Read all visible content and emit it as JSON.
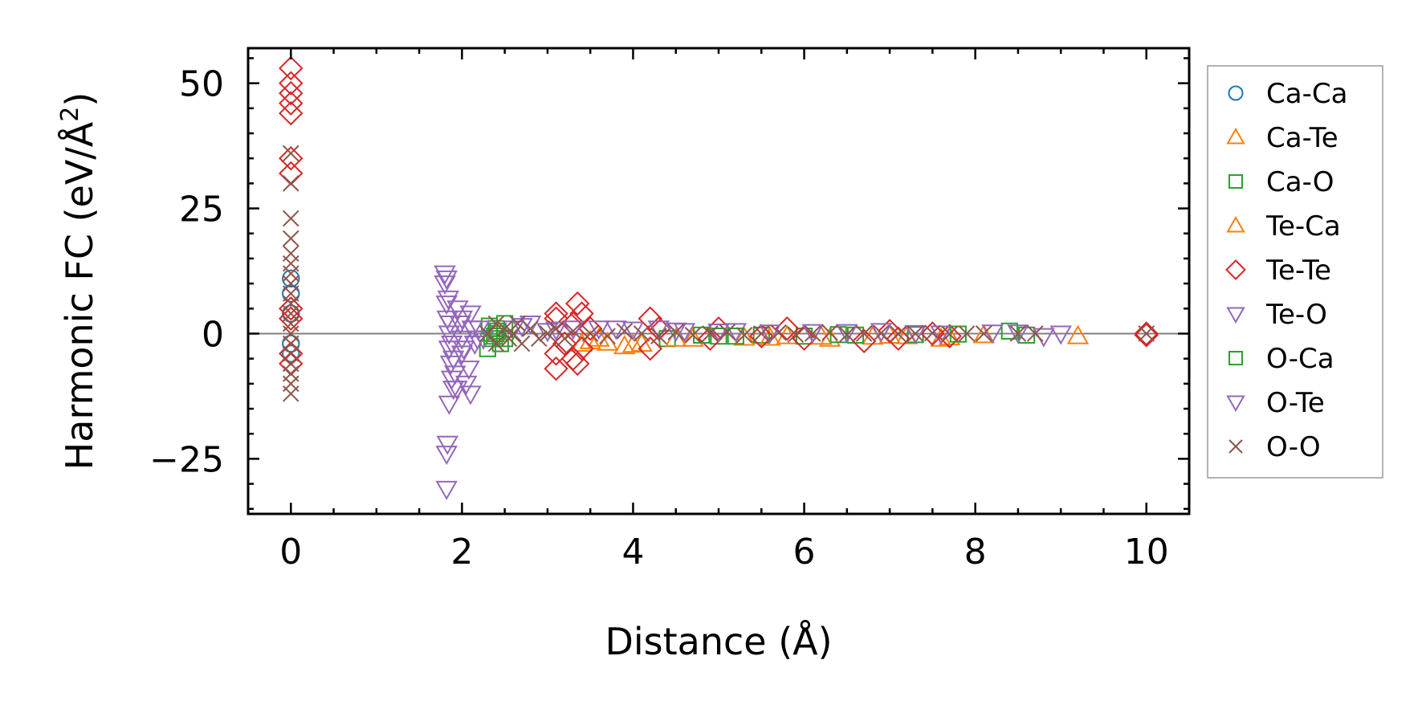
{
  "chart_data": {
    "type": "scatter",
    "xlabel": "Distance (Å)",
    "ylabel_main": "Harmonic FC (eV/Å",
    "ylabel_sup": "2",
    "ylabel_close": ")",
    "xlim": [
      -0.5,
      10.5
    ],
    "ylim": [
      -36,
      57
    ],
    "xticks": [
      0,
      2,
      4,
      6,
      8,
      10
    ],
    "xtick_labels": [
      "0",
      "2",
      "4",
      "6",
      "8",
      "10"
    ],
    "yticks": [
      -25,
      0,
      25,
      50
    ],
    "ytick_labels": [
      "−25",
      "0",
      "25",
      "50"
    ],
    "legend_position": "outside-right",
    "reference_line_y": 0,
    "series": [
      {
        "name": "Ca-Ca",
        "marker": "circle",
        "color": "#1f77b4",
        "points": [
          [
            0,
            4
          ],
          [
            0,
            -2
          ],
          [
            0,
            8
          ],
          [
            0,
            -4
          ],
          [
            0,
            11
          ]
        ]
      },
      {
        "name": "Ca-Te",
        "marker": "triangle-up",
        "color": "#ff7f0e",
        "points": [
          [
            3.4,
            -2
          ],
          [
            3.6,
            -1
          ],
          [
            3.9,
            -2.5
          ],
          [
            4.1,
            -2
          ],
          [
            4.7,
            -1
          ],
          [
            5.3,
            -0.8
          ],
          [
            5.8,
            -0.5
          ],
          [
            6.3,
            -1
          ],
          [
            6.8,
            -0.6
          ],
          [
            7.2,
            -0.5
          ],
          [
            7.6,
            -1
          ],
          [
            8.1,
            -0.3
          ],
          [
            9.2,
            -0.5
          ]
        ]
      },
      {
        "name": "Ca-O",
        "marker": "square",
        "color": "#2ca02c",
        "points": [
          [
            2.3,
            -3
          ],
          [
            2.35,
            -1
          ],
          [
            2.4,
            0
          ],
          [
            2.4,
            1
          ],
          [
            2.45,
            -2
          ],
          [
            2.5,
            2
          ],
          [
            4.4,
            -1
          ],
          [
            5.0,
            -0.5
          ],
          [
            5.5,
            -0.3
          ],
          [
            6.0,
            -0.5
          ],
          [
            6.6,
            -0.3
          ],
          [
            7.3,
            -0.2
          ],
          [
            8.4,
            0.5
          ],
          [
            8.6,
            -0.3
          ]
        ]
      },
      {
        "name": "Te-Ca",
        "marker": "triangle-up",
        "color": "#ff7f0e",
        "points": [
          [
            3.5,
            -1.5
          ],
          [
            3.7,
            -1.8
          ],
          [
            4.0,
            -2.2
          ],
          [
            4.5,
            -1
          ],
          [
            5.6,
            -0.8
          ],
          [
            6.2,
            -0.6
          ],
          [
            7.0,
            -0.4
          ],
          [
            7.7,
            -0.7
          ]
        ]
      },
      {
        "name": "Te-Te",
        "marker": "diamond",
        "color": "#d62728",
        "points": [
          [
            0,
            53
          ],
          [
            0,
            50
          ],
          [
            0,
            48
          ],
          [
            0,
            46
          ],
          [
            0,
            44
          ],
          [
            0,
            35
          ],
          [
            0,
            32
          ],
          [
            0,
            5
          ],
          [
            0,
            3
          ],
          [
            0,
            -4
          ],
          [
            0,
            -6
          ],
          [
            3.1,
            4
          ],
          [
            3.1,
            3
          ],
          [
            3.1,
            -4
          ],
          [
            3.1,
            -7
          ],
          [
            3.2,
            -2
          ],
          [
            3.3,
            2
          ],
          [
            3.3,
            -5
          ],
          [
            3.35,
            6
          ],
          [
            3.35,
            -6
          ],
          [
            3.4,
            4
          ],
          [
            3.4,
            -3
          ],
          [
            3.5,
            1
          ],
          [
            4.2,
            3
          ],
          [
            4.2,
            -3
          ],
          [
            4.3,
            1
          ],
          [
            4.9,
            -1
          ],
          [
            5.0,
            1
          ],
          [
            5.5,
            -0.5
          ],
          [
            5.8,
            1
          ],
          [
            6.0,
            -1
          ],
          [
            6.7,
            -1.5
          ],
          [
            7.0,
            0.5
          ],
          [
            7.1,
            -1
          ],
          [
            7.5,
            0
          ],
          [
            7.7,
            -0.5
          ],
          [
            10,
            0
          ],
          [
            10,
            -0.3
          ]
        ]
      },
      {
        "name": "Te-O",
        "marker": "triangle-down",
        "color": "#9467bd",
        "points": [
          [
            1.8,
            12
          ],
          [
            1.8,
            10
          ],
          [
            1.82,
            6
          ],
          [
            1.83,
            3
          ],
          [
            1.85,
            0
          ],
          [
            1.85,
            -3
          ],
          [
            1.87,
            -6
          ],
          [
            1.88,
            -9
          ],
          [
            1.9,
            -11
          ],
          [
            1.85,
            -14
          ],
          [
            1.83,
            -22
          ],
          [
            1.82,
            -24
          ],
          [
            1.82,
            -31
          ],
          [
            1.95,
            5
          ],
          [
            1.98,
            2
          ],
          [
            2.0,
            -1
          ],
          [
            2.0,
            -4
          ],
          [
            2.05,
            -10
          ],
          [
            2.1,
            -12
          ],
          [
            2.1,
            4
          ],
          [
            2.15,
            -2
          ],
          [
            2.2,
            1
          ],
          [
            2.25,
            -1
          ],
          [
            2.6,
            1
          ],
          [
            2.8,
            2
          ],
          [
            3.0,
            0.5
          ],
          [
            3.3,
            1
          ],
          [
            3.8,
            1
          ],
          [
            4.3,
            1
          ],
          [
            4.6,
            0.5
          ],
          [
            5.2,
            0.5
          ],
          [
            6.1,
            0.3
          ],
          [
            6.9,
            0.5
          ],
          [
            7.6,
            0
          ],
          [
            8.8,
            -0.5
          ],
          [
            9.0,
            0
          ],
          [
            8.5,
            0.2
          ]
        ]
      },
      {
        "name": "O-Ca",
        "marker": "square",
        "color": "#2ca02c",
        "points": [
          [
            2.32,
            1.5
          ],
          [
            2.38,
            -0.5
          ],
          [
            2.42,
            0.5
          ],
          [
            2.5,
            -1
          ],
          [
            4.8,
            -0.3
          ],
          [
            5.2,
            -0.5
          ],
          [
            6.4,
            -0.2
          ],
          [
            7.8,
            -0.1
          ]
        ]
      },
      {
        "name": "O-Te",
        "marker": "triangle-down",
        "color": "#9467bd",
        "points": [
          [
            1.82,
            11
          ],
          [
            1.84,
            7
          ],
          [
            1.86,
            2
          ],
          [
            1.88,
            -2
          ],
          [
            1.9,
            -5
          ],
          [
            1.92,
            -8
          ],
          [
            1.94,
            -11
          ],
          [
            2.0,
            3
          ],
          [
            2.02,
            -3
          ],
          [
            2.08,
            -7
          ],
          [
            2.12,
            1
          ],
          [
            2.18,
            -1
          ],
          [
            2.7,
            1.5
          ],
          [
            3.1,
            0.8
          ],
          [
            3.6,
            1
          ],
          [
            4.0,
            0.8
          ],
          [
            4.5,
            0.6
          ],
          [
            5.0,
            0.4
          ],
          [
            5.6,
            0.2
          ],
          [
            6.5,
            0.3
          ],
          [
            7.3,
            0.1
          ],
          [
            8.2,
            0.2
          ]
        ]
      },
      {
        "name": "O-O",
        "marker": "x",
        "color": "#8c564b",
        "points": [
          [
            0,
            36
          ],
          [
            0,
            30
          ],
          [
            0,
            23
          ],
          [
            0,
            19
          ],
          [
            0,
            16
          ],
          [
            0,
            14
          ],
          [
            0,
            12
          ],
          [
            0,
            10
          ],
          [
            0,
            8
          ],
          [
            0,
            6
          ],
          [
            0,
            4
          ],
          [
            0,
            2
          ],
          [
            0,
            0
          ],
          [
            0,
            -2
          ],
          [
            0,
            -4
          ],
          [
            0,
            -6
          ],
          [
            0,
            -8
          ],
          [
            0,
            -10
          ],
          [
            0,
            -12
          ],
          [
            2.3,
            0
          ],
          [
            2.4,
            2
          ],
          [
            2.4,
            -2
          ],
          [
            2.5,
            1
          ],
          [
            2.55,
            -1
          ],
          [
            2.6,
            0
          ],
          [
            2.65,
            2
          ],
          [
            2.7,
            -2
          ],
          [
            2.8,
            1
          ],
          [
            2.9,
            -1
          ],
          [
            3.0,
            0
          ],
          [
            3.1,
            1
          ],
          [
            3.2,
            -1
          ],
          [
            3.3,
            0.5
          ],
          [
            3.5,
            0
          ],
          [
            3.7,
            -0.5
          ],
          [
            3.9,
            0.5
          ],
          [
            4.1,
            0
          ],
          [
            4.3,
            -0.5
          ],
          [
            4.5,
            0.3
          ],
          [
            4.7,
            -0.3
          ],
          [
            4.9,
            0
          ],
          [
            5.1,
            0.3
          ],
          [
            5.3,
            -0.3
          ],
          [
            5.5,
            0
          ],
          [
            5.7,
            0.2
          ],
          [
            5.9,
            -0.2
          ],
          [
            6.1,
            0
          ],
          [
            6.3,
            0.2
          ],
          [
            6.5,
            -0.2
          ],
          [
            6.7,
            0
          ],
          [
            6.9,
            0.1
          ],
          [
            7.1,
            -0.1
          ],
          [
            7.3,
            0
          ],
          [
            7.5,
            0.1
          ],
          [
            7.7,
            -0.1
          ],
          [
            7.9,
            0
          ],
          [
            8.1,
            0
          ],
          [
            8.5,
            0
          ],
          [
            8.7,
            0
          ],
          [
            10,
            0
          ]
        ]
      }
    ]
  }
}
